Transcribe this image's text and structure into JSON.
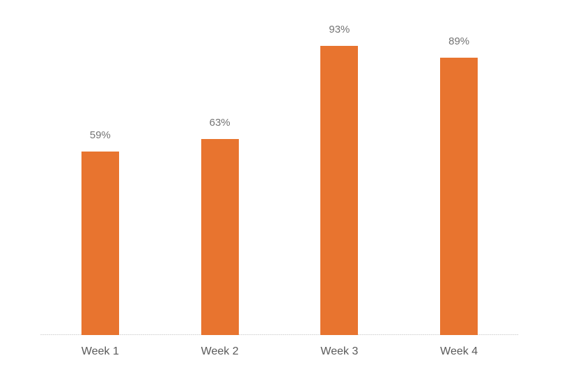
{
  "chart_data": {
    "type": "bar",
    "title": "",
    "xlabel": "",
    "ylabel": "",
    "categories": [
      "Week 1",
      "Week 2",
      "Week 3",
      "Week 4"
    ],
    "values": [
      59,
      63,
      93,
      89
    ],
    "data_labels": [
      "59%",
      "63%",
      "93%",
      "89%"
    ],
    "ylim": [
      0,
      100
    ],
    "grid": false,
    "legend_position": "none",
    "colors": {
      "bar": "#E8742F",
      "data_label": "#737373",
      "tick_label": "#595959",
      "axis_line": "#D9D9D9",
      "background": "#FFFFFF"
    }
  }
}
